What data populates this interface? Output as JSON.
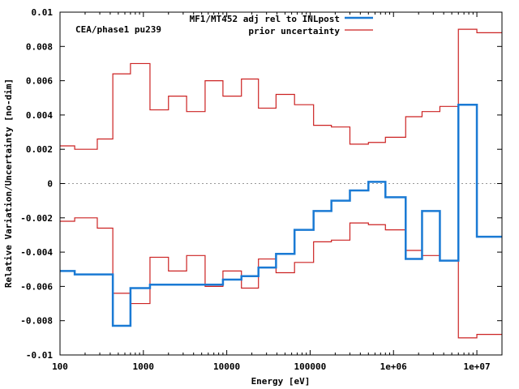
{
  "chart_data": {
    "type": "line",
    "title": "",
    "annotation": "CEA/phase1 pu239",
    "xlabel": "Energy [eV]",
    "ylabel": "Relative Variation/Uncertainty [no-dim]",
    "xscale": "log",
    "xlim": [
      100,
      20000000
    ],
    "ylim": [
      -0.01,
      0.01
    ],
    "x_ticks": [
      100,
      1000,
      10000,
      100000,
      1000000,
      10000000
    ],
    "x_tick_labels": [
      "100",
      "1000",
      "10000",
      "100000",
      "1e+06",
      "1e+07"
    ],
    "y_ticks": [
      -0.01,
      -0.008,
      -0.006,
      -0.004,
      -0.002,
      0,
      0.002,
      0.004,
      0.006,
      0.008,
      0.01
    ],
    "y_tick_labels": [
      "-0.01",
      "-0.008",
      "-0.006",
      "-0.004",
      "-0.002",
      "0",
      "0.002",
      "0.004",
      "0.006",
      "0.008",
      "0.01"
    ],
    "zero_line": true,
    "legend_position": "top-right",
    "group_edges": [
      100,
      150,
      280,
      430,
      700,
      1200,
      2000,
      3300,
      5500,
      9000,
      15000,
      24000,
      39000,
      65000,
      110000,
      180000,
      300000,
      500000,
      800000,
      1400000,
      2200000,
      3600000,
      6000000,
      10000000,
      20000000
    ],
    "series": [
      {
        "name": "MF1/MT452 adj rel to INLpost",
        "color": "#1a7ad4",
        "style": "step",
        "values": [
          -0.0051,
          -0.0053,
          -0.0053,
          -0.0083,
          -0.0061,
          -0.0059,
          -0.0059,
          -0.0059,
          -0.0059,
          -0.0056,
          -0.0054,
          -0.0049,
          -0.0041,
          -0.0027,
          -0.0016,
          -0.001,
          -0.0004,
          0.0001,
          -0.0008,
          -0.0044,
          -0.0016,
          -0.0045,
          0.0046,
          -0.0031
        ]
      },
      {
        "name": "prior uncertainty",
        "color": "#cc2222",
        "style": "step",
        "symmetric": true,
        "values": [
          0.0022,
          0.002,
          0.0026,
          0.0064,
          0.007,
          0.0043,
          0.0051,
          0.0042,
          0.006,
          0.0051,
          0.0061,
          0.0044,
          0.0052,
          0.0046,
          0.0034,
          0.0033,
          0.0023,
          0.0024,
          0.0027,
          0.0039,
          0.0042,
          0.0045,
          0.009,
          0.0088
        ]
      }
    ]
  }
}
